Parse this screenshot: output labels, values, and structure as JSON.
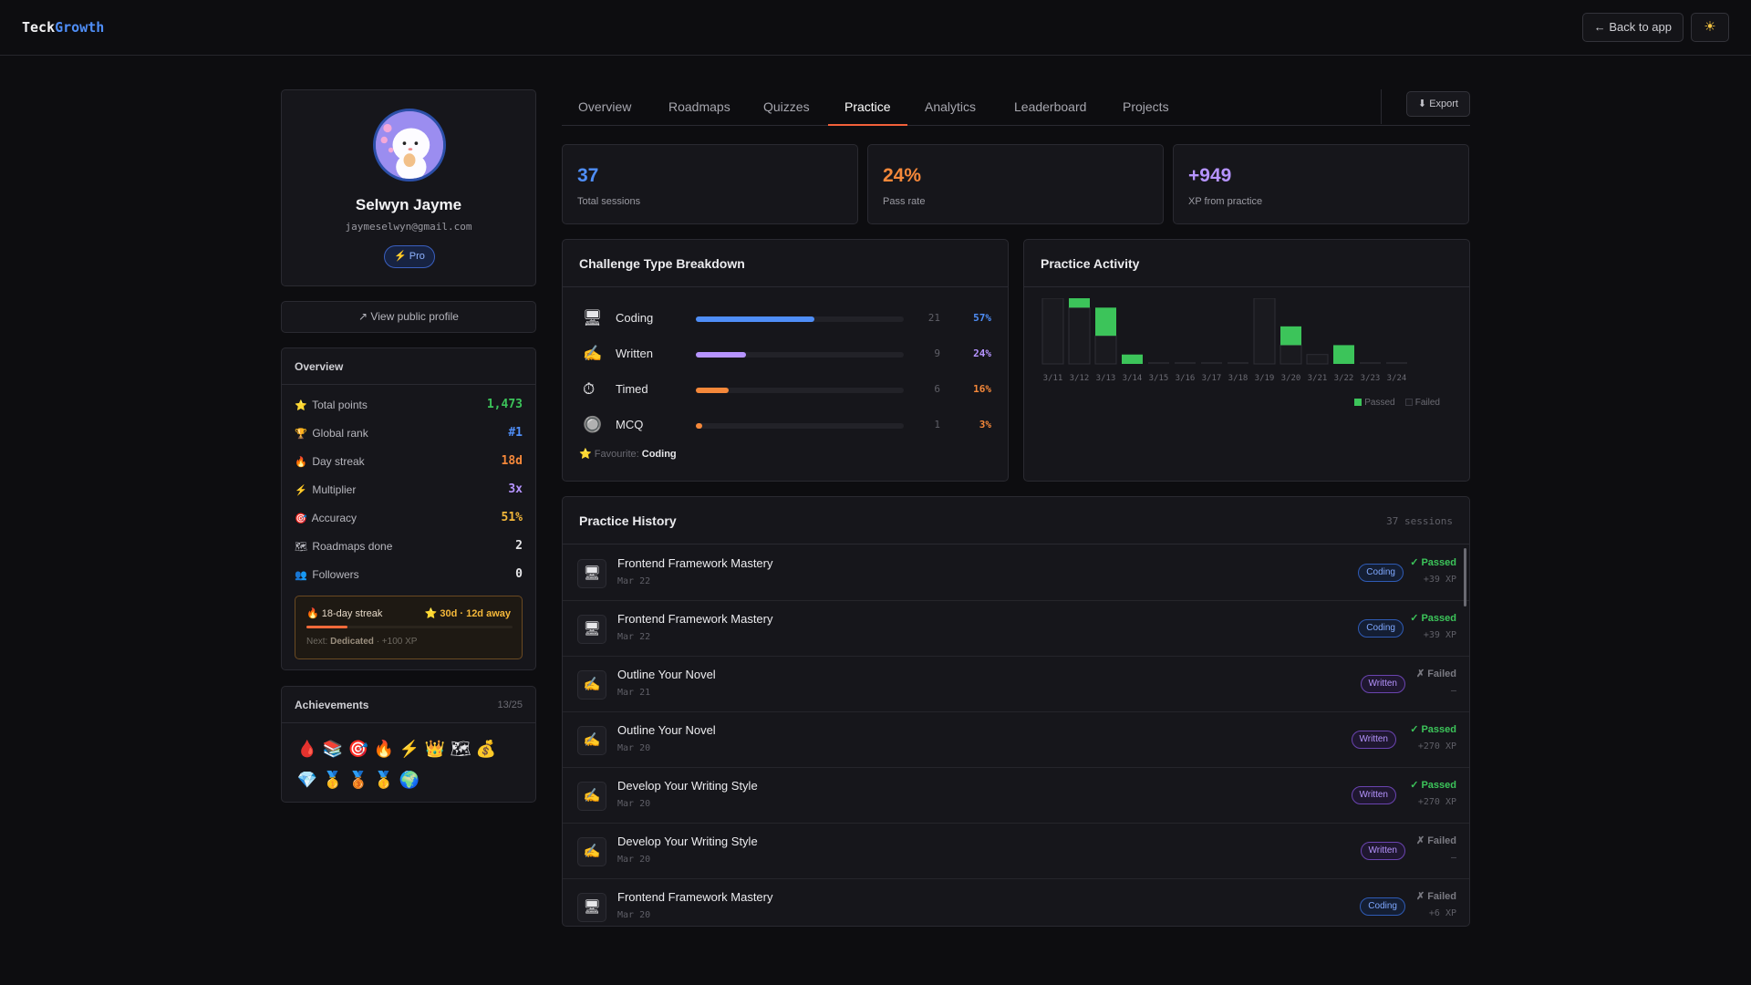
{
  "app": {
    "logo_main": "Teck",
    "logo_accent": "Growth"
  },
  "topbar": {
    "back_label": "← Back to app",
    "theme_icon": "☀"
  },
  "profile": {
    "name": "Selwyn Jayme",
    "email": "jaymeselwyn@gmail.com",
    "badge": "⚡ Pro",
    "view_public": "↗ View public profile"
  },
  "overview": {
    "title": "Overview",
    "stats": [
      {
        "icon": "⭐",
        "label": "Total points",
        "value": "1,473",
        "color": "#3cc45a"
      },
      {
        "icon": "🏆",
        "label": "Global rank",
        "value": "#1",
        "color": "#4f8ef7"
      },
      {
        "icon": "🔥",
        "label": "Day streak",
        "value": "18d",
        "color": "#f5883a"
      },
      {
        "icon": "⚡",
        "label": "Multiplier",
        "value": "3x",
        "color": "#b694ff"
      },
      {
        "icon": "🎯",
        "label": "Accuracy",
        "value": "51%",
        "color": "#f5b83a"
      },
      {
        "icon": "🗺",
        "label": "Roadmaps done",
        "value": "2",
        "color": "#e6e6e9"
      },
      {
        "icon": "👥",
        "label": "Followers",
        "value": "0",
        "color": "#e6e6e9"
      }
    ],
    "streak": {
      "title": "🔥 18-day streak",
      "goal": "⭐ 30d · 12d away",
      "progress": 0.2,
      "next_prefix": "Next:",
      "next_name": "Dedicated",
      "next_reward": "· +100 XP"
    }
  },
  "achievements": {
    "title": "Achievements",
    "count": "13/25",
    "icons": [
      "🩸",
      "📚",
      "🎯",
      "🔥",
      "⚡",
      "👑",
      "🗺",
      "💰",
      "💎",
      "🥇",
      "🥉",
      "🥇",
      "🌍"
    ]
  },
  "tabs": {
    "items": [
      "Overview",
      "Roadmaps",
      "Quizzes",
      "Practice",
      "Analytics",
      "Leaderboard",
      "Projects"
    ],
    "active": "Practice",
    "export_label": "⬇ Export"
  },
  "summary": [
    {
      "value": "37",
      "label": "Total sessions",
      "color": "#4f8ef7"
    },
    {
      "value": "24%",
      "label": "Pass rate",
      "color": "#f5883a"
    },
    {
      "value": "+949",
      "label": "XP from practice",
      "color": "#b694ff"
    }
  ],
  "breakdown": {
    "title": "Challenge Type Breakdown",
    "rows": [
      {
        "icon": "🖥",
        "name": "Coding",
        "count": "21",
        "pct": "57%",
        "fraction": 0.57,
        "color": "#4f8ef7"
      },
      {
        "icon": "✍",
        "name": "Written",
        "count": "9",
        "pct": "24%",
        "fraction": 0.24,
        "color": "#b694ff"
      },
      {
        "icon": "⏱",
        "name": "Timed",
        "count": "6",
        "pct": "16%",
        "fraction": 0.16,
        "color": "#f5883a"
      },
      {
        "icon": "🔘",
        "name": "MCQ",
        "count": "1",
        "pct": "3%",
        "fraction": 0.03,
        "color": "#f5883a"
      }
    ],
    "favourite_label": "Favourite:",
    "favourite_value": "Coding"
  },
  "activity": {
    "title": "Practice Activity",
    "legend_passed": "Passed",
    "legend_failed": "Failed",
    "colors": {
      "passed": "#3cc45a",
      "failed": "#1a1a1f"
    }
  },
  "chart_data": {
    "type": "bar",
    "title": "Practice Activity",
    "categories": [
      "3/11",
      "3/12",
      "3/13",
      "3/14",
      "3/15",
      "3/16",
      "3/17",
      "3/18",
      "3/19",
      "3/20",
      "3/21",
      "3/22",
      "3/23",
      "3/24"
    ],
    "series": [
      {
        "name": "Passed",
        "values": [
          0,
          1,
          3,
          1,
          0,
          0,
          0,
          0,
          0,
          2,
          0,
          2,
          0,
          0
        ]
      },
      {
        "name": "Failed",
        "values": [
          7,
          6,
          3,
          0,
          0,
          0,
          0,
          0,
          7,
          2,
          1,
          0,
          0,
          0
        ]
      }
    ],
    "stacked": true,
    "ylim": [
      0,
      7
    ],
    "grid": false,
    "legend": "bottom-right"
  },
  "history": {
    "title": "Practice History",
    "count": "37 sessions",
    "rows": [
      {
        "icon": "🖥",
        "name": "Frontend Framework Mastery",
        "date": "Mar 22",
        "tag": "Coding",
        "status": "✓ Passed",
        "xp": "+39 XP",
        "passed": true
      },
      {
        "icon": "🖥",
        "name": "Frontend Framework Mastery",
        "date": "Mar 22",
        "tag": "Coding",
        "status": "✓ Passed",
        "xp": "+39 XP",
        "passed": true
      },
      {
        "icon": "✍",
        "name": "Outline Your Novel",
        "date": "Mar 21",
        "tag": "Written",
        "status": "✗ Failed",
        "xp": "—",
        "passed": false
      },
      {
        "icon": "✍",
        "name": "Outline Your Novel",
        "date": "Mar 20",
        "tag": "Written",
        "status": "✓ Passed",
        "xp": "+270 XP",
        "passed": true
      },
      {
        "icon": "✍",
        "name": "Develop Your Writing Style",
        "date": "Mar 20",
        "tag": "Written",
        "status": "✓ Passed",
        "xp": "+270 XP",
        "passed": true
      },
      {
        "icon": "✍",
        "name": "Develop Your Writing Style",
        "date": "Mar 20",
        "tag": "Written",
        "status": "✗ Failed",
        "xp": "—",
        "passed": false
      },
      {
        "icon": "🖥",
        "name": "Frontend Framework Mastery",
        "date": "Mar 20",
        "tag": "Coding",
        "status": "✗ Failed",
        "xp": "+6 XP",
        "passed": false
      }
    ]
  }
}
